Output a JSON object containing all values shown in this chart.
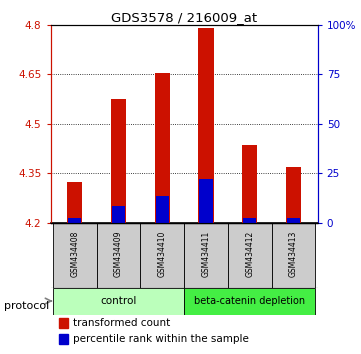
{
  "title": "GDS3578 / 216009_at",
  "samples": [
    "GSM434408",
    "GSM434409",
    "GSM434410",
    "GSM434411",
    "GSM434412",
    "GSM434413"
  ],
  "transformed_counts": [
    4.325,
    4.575,
    4.655,
    4.79,
    4.435,
    4.368
  ],
  "percentile_ranks_abs": [
    4.213,
    4.252,
    4.282,
    4.332,
    4.215,
    4.213
  ],
  "bar_bottom": 4.2,
  "ylim": [
    4.2,
    4.8
  ],
  "yticks_left": [
    4.2,
    4.35,
    4.5,
    4.65,
    4.8
  ],
  "yticks_right_vals": [
    0,
    25,
    50,
    75,
    100
  ],
  "yticks_right_labels": [
    "0",
    "25",
    "50",
    "75",
    "100%"
  ],
  "bar_color": "#cc1100",
  "percentile_color": "#0000cc",
  "bar_width": 0.35,
  "protocol_labels": [
    "control",
    "beta-catenin depletion"
  ],
  "n_control": 3,
  "n_depletion": 3,
  "control_color": "#bbffbb",
  "depletion_color": "#44ee44",
  "legend_red_label": "transformed count",
  "legend_blue_label": "percentile rank within the sample",
  "protocol_text": "protocol",
  "left_axis_color": "#cc1100",
  "right_axis_color": "#0000cc",
  "grid_color": "#000000",
  "xticklabel_bg": "#cccccc"
}
